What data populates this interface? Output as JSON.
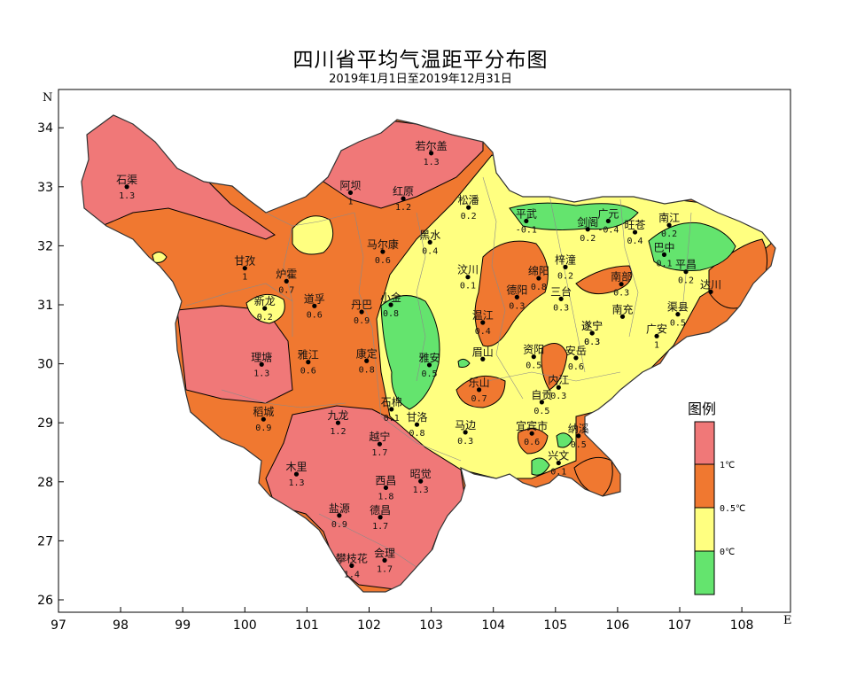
{
  "title": "四川省平均气温距平分布图",
  "subtitle": "2019年1月1日至2019年12月31日",
  "axes": {
    "x_unit": "E",
    "y_unit": "N",
    "x_ticks": [
      "97",
      "98",
      "99",
      "100",
      "101",
      "102",
      "103",
      "104",
      "105",
      "106",
      "107",
      "108"
    ],
    "y_ticks": [
      "26",
      "27",
      "28",
      "29",
      "30",
      "31",
      "32",
      "33",
      "34"
    ]
  },
  "legend": {
    "title": "图例",
    "labels": [
      "1℃",
      "0.5℃",
      "0℃"
    ],
    "colors": {
      ">=1": "#f07878",
      "0.5-1": "#f07830",
      "0-0.5": "#ffff80",
      "<0": "#64e46e"
    }
  },
  "chart_data": {
    "type": "contour-map",
    "region": "Sichuan",
    "xlim": [
      97,
      108.8
    ],
    "ylim": [
      25.9,
      34.6
    ],
    "variable": "annual mean temperature anomaly (℃)",
    "levels": [
      0,
      0.5,
      1
    ],
    "stations": [
      {
        "name": "若尔盖",
        "value": "1.3",
        "lon": 103.0,
        "lat": 33.57
      },
      {
        "name": "石渠",
        "value": "1.3",
        "lon": 98.1,
        "lat": 33.0
      },
      {
        "name": "阿坝",
        "value": "1",
        "lon": 101.7,
        "lat": 32.9
      },
      {
        "name": "红原",
        "value": "1.2",
        "lon": 102.55,
        "lat": 32.8
      },
      {
        "name": "松潘",
        "value": "0.2",
        "lon": 103.6,
        "lat": 32.65
      },
      {
        "name": "平武",
        "value": "-0.1",
        "lon": 104.53,
        "lat": 32.42
      },
      {
        "name": "广元",
        "value": "-0.4",
        "lon": 105.85,
        "lat": 32.42
      },
      {
        "name": "旺苍",
        "value": "0.4",
        "lon": 106.28,
        "lat": 32.23
      },
      {
        "name": "南江",
        "value": "0.2",
        "lon": 106.83,
        "lat": 32.35
      },
      {
        "name": "马尔康",
        "value": "0.6",
        "lon": 102.22,
        "lat": 31.9
      },
      {
        "name": "黑水",
        "value": "0.4",
        "lon": 102.98,
        "lat": 32.06
      },
      {
        "name": "剑阁",
        "value": "0.2",
        "lon": 105.52,
        "lat": 32.28
      },
      {
        "name": "巴中",
        "value": "0.1",
        "lon": 106.75,
        "lat": 31.85
      },
      {
        "name": "甘孜",
        "value": "1",
        "lon": 100.0,
        "lat": 31.62
      },
      {
        "name": "炉霍",
        "value": "0.7",
        "lon": 100.67,
        "lat": 31.4
      },
      {
        "name": "梓潼",
        "value": "0.2",
        "lon": 105.16,
        "lat": 31.64
      },
      {
        "name": "平昌",
        "value": "0.2",
        "lon": 107.1,
        "lat": 31.56
      },
      {
        "name": "汶川",
        "value": "0.1",
        "lon": 103.59,
        "lat": 31.47
      },
      {
        "name": "绵阳",
        "value": "0.8",
        "lon": 104.73,
        "lat": 31.45
      },
      {
        "name": "南部",
        "value": "0.3",
        "lon": 106.06,
        "lat": 31.35
      },
      {
        "name": "达川",
        "value": "",
        "lon": 107.5,
        "lat": 31.22
      },
      {
        "name": "新龙",
        "value": "0.2",
        "lon": 100.32,
        "lat": 30.94
      },
      {
        "name": "道孚",
        "value": "0.6",
        "lon": 101.12,
        "lat": 30.98
      },
      {
        "name": "丹巴",
        "value": "0.9",
        "lon": 101.88,
        "lat": 30.88
      },
      {
        "name": "小金",
        "value": "0.8",
        "lon": 102.35,
        "lat": 31.0
      },
      {
        "name": "德阳",
        "value": "0.3",
        "lon": 104.38,
        "lat": 31.13
      },
      {
        "name": "三台",
        "value": "0.3",
        "lon": 105.09,
        "lat": 31.1
      },
      {
        "name": "南充",
        "value": "",
        "lon": 106.08,
        "lat": 30.8
      },
      {
        "name": "渠县",
        "value": "0.5",
        "lon": 106.97,
        "lat": 30.84
      },
      {
        "name": "温江",
        "value": "0.4",
        "lon": 103.83,
        "lat": 30.7
      },
      {
        "name": "遂宁",
        "value": "0.3",
        "lon": 105.59,
        "lat": 30.52
      },
      {
        "name": "广安",
        "value": "1",
        "lon": 106.63,
        "lat": 30.47
      },
      {
        "name": "遂宁",
        "value": "0.3",
        "lon": 105.59,
        "lat": 30.52
      },
      {
        "name": "理塘",
        "value": "1.3",
        "lon": 100.27,
        "lat": 29.99
      },
      {
        "name": "雅江",
        "value": "0.6",
        "lon": 101.02,
        "lat": 30.03
      },
      {
        "name": "康定",
        "value": "0.8",
        "lon": 101.96,
        "lat": 30.05
      },
      {
        "name": "雅安",
        "value": "0.5",
        "lon": 102.97,
        "lat": 29.98
      },
      {
        "name": "眉山",
        "value": "",
        "lon": 103.83,
        "lat": 30.08
      },
      {
        "name": "资阳",
        "value": "0.5",
        "lon": 104.65,
        "lat": 30.12
      },
      {
        "name": "安岳",
        "value": "0.6",
        "lon": 105.33,
        "lat": 30.1
      },
      {
        "name": "乐山",
        "value": "0.7",
        "lon": 103.77,
        "lat": 29.56
      },
      {
        "name": "内江",
        "value": "0.3",
        "lon": 105.05,
        "lat": 29.6
      },
      {
        "name": "稻城",
        "value": "0.9",
        "lon": 100.3,
        "lat": 29.06
      },
      {
        "name": "九龙",
        "value": "1.2",
        "lon": 101.5,
        "lat": 29.0
      },
      {
        "name": "石棉",
        "value": "0.1",
        "lon": 102.36,
        "lat": 29.23
      },
      {
        "name": "自贡",
        "value": "0.5",
        "lon": 104.78,
        "lat": 29.35
      },
      {
        "name": "甘洛",
        "value": "0.8",
        "lon": 102.77,
        "lat": 28.97
      },
      {
        "name": "马边",
        "value": "0.3",
        "lon": 103.55,
        "lat": 28.84
      },
      {
        "name": "宜宾市",
        "value": "0.6",
        "lon": 104.62,
        "lat": 28.82
      },
      {
        "name": "纳溪",
        "value": "0.5",
        "lon": 105.37,
        "lat": 28.78
      },
      {
        "name": "越宁",
        "value": "1.7",
        "lon": 102.17,
        "lat": 28.64
      },
      {
        "name": "兴文",
        "value": "0.1",
        "lon": 105.05,
        "lat": 28.32
      },
      {
        "name": "木里",
        "value": "1.3",
        "lon": 100.83,
        "lat": 28.13
      },
      {
        "name": "西昌",
        "value": "1.8",
        "lon": 102.27,
        "lat": 27.9
      },
      {
        "name": "昭觉",
        "value": "1.3",
        "lon": 102.83,
        "lat": 28.01
      },
      {
        "name": "盐源",
        "value": "0.9",
        "lon": 101.52,
        "lat": 27.43
      },
      {
        "name": "德昌",
        "value": "1.7",
        "lon": 102.18,
        "lat": 27.4
      },
      {
        "name": "会理",
        "value": "1.7",
        "lon": 102.25,
        "lat": 26.67
      },
      {
        "name": "攀枝花",
        "value": "1.4",
        "lon": 101.72,
        "lat": 26.58
      }
    ]
  }
}
